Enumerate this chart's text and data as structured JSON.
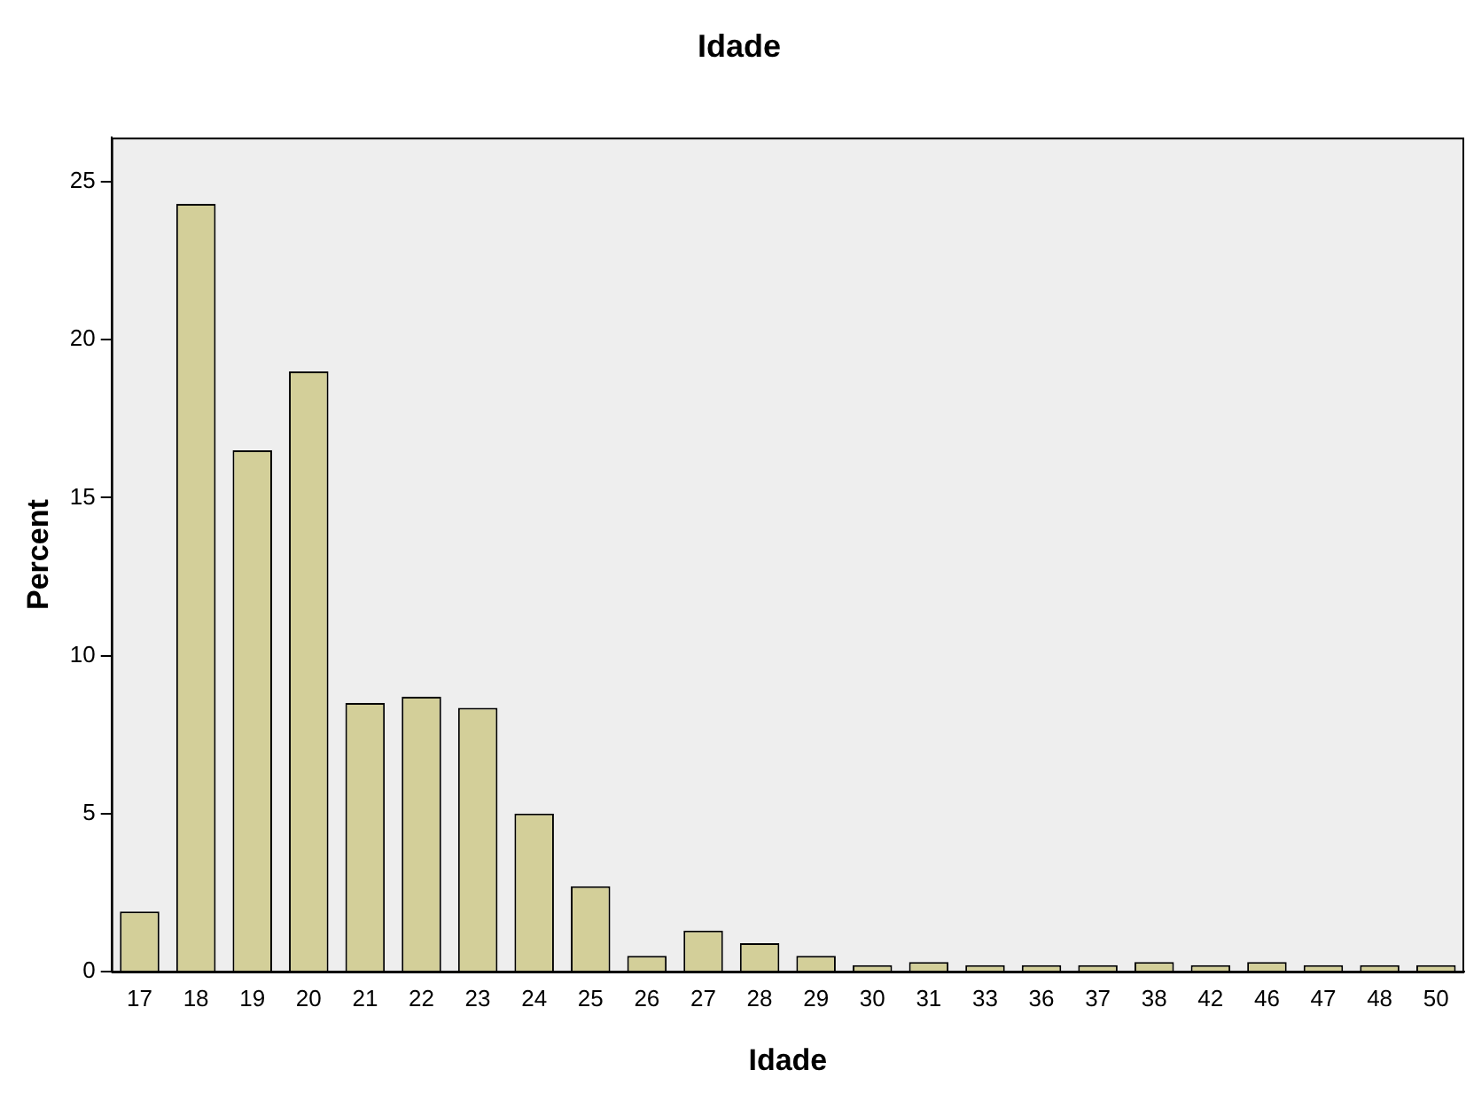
{
  "chart_data": {
    "type": "bar",
    "title": "Idade",
    "xlabel": "Idade",
    "ylabel": "Percent",
    "categories": [
      "17",
      "18",
      "19",
      "20",
      "21",
      "22",
      "23",
      "24",
      "25",
      "26",
      "27",
      "28",
      "29",
      "30",
      "31",
      "33",
      "36",
      "37",
      "38",
      "42",
      "46",
      "47",
      "48",
      "50"
    ],
    "values": [
      1.9,
      24.3,
      16.5,
      19.0,
      8.5,
      8.7,
      8.35,
      5.0,
      2.7,
      0.5,
      1.3,
      0.9,
      0.5,
      0.2,
      0.3,
      0.2,
      0.2,
      0.2,
      0.3,
      0.2,
      0.3,
      0.2,
      0.2,
      0.2
    ],
    "color": "#d3cf99",
    "ylim": [
      0,
      26.4
    ],
    "yticks": [
      0,
      5,
      10,
      15,
      20,
      25
    ],
    "grid": false,
    "legend": false
  }
}
